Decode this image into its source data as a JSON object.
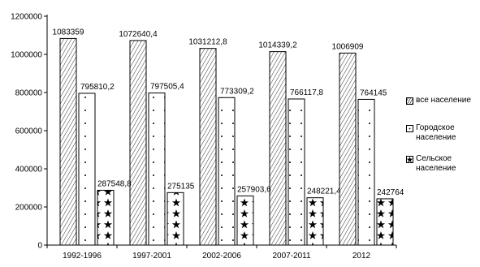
{
  "chart_data": {
    "type": "bar",
    "title": "",
    "xlabel": "",
    "ylabel": "",
    "ylim": [
      0,
      1200000
    ],
    "yticks": [
      0,
      200000,
      400000,
      600000,
      800000,
      1000000,
      1200000
    ],
    "ytick_labels": [
      "0",
      "200000",
      "400000",
      "600000",
      "800000",
      "1000000",
      "1200000"
    ],
    "grid": false,
    "legend_position": "right",
    "categories": [
      "1992-1996",
      "1997-2001",
      "2002-2006",
      "2007-2011",
      "2012"
    ],
    "series": [
      {
        "name": "все население",
        "pattern": "diagonal-lines",
        "values": [
          1083359,
          1072640.4,
          1031212.8,
          1014339.2,
          1006909
        ],
        "labels": [
          "1083359",
          "1072640,4",
          "1031212,8",
          "1014339,2",
          "1006909"
        ]
      },
      {
        "name": "Городское население",
        "pattern": "dots",
        "values": [
          795810.2,
          797505.4,
          773309.2,
          766117.8,
          764145
        ],
        "labels": [
          "795810,2",
          "797505,4",
          "773309,2",
          "766117,8",
          "764145"
        ]
      },
      {
        "name": "Сельское население",
        "pattern": "stars",
        "values": [
          287548.8,
          275135,
          257903.6,
          248221.4,
          242764
        ],
        "labels": [
          "287548,8",
          "275135",
          "257903,6",
          "248221,4",
          "242764"
        ]
      }
    ],
    "colors": {
      "fill": "#ffffff",
      "stroke": "#000000",
      "pattern": "#000000"
    }
  }
}
